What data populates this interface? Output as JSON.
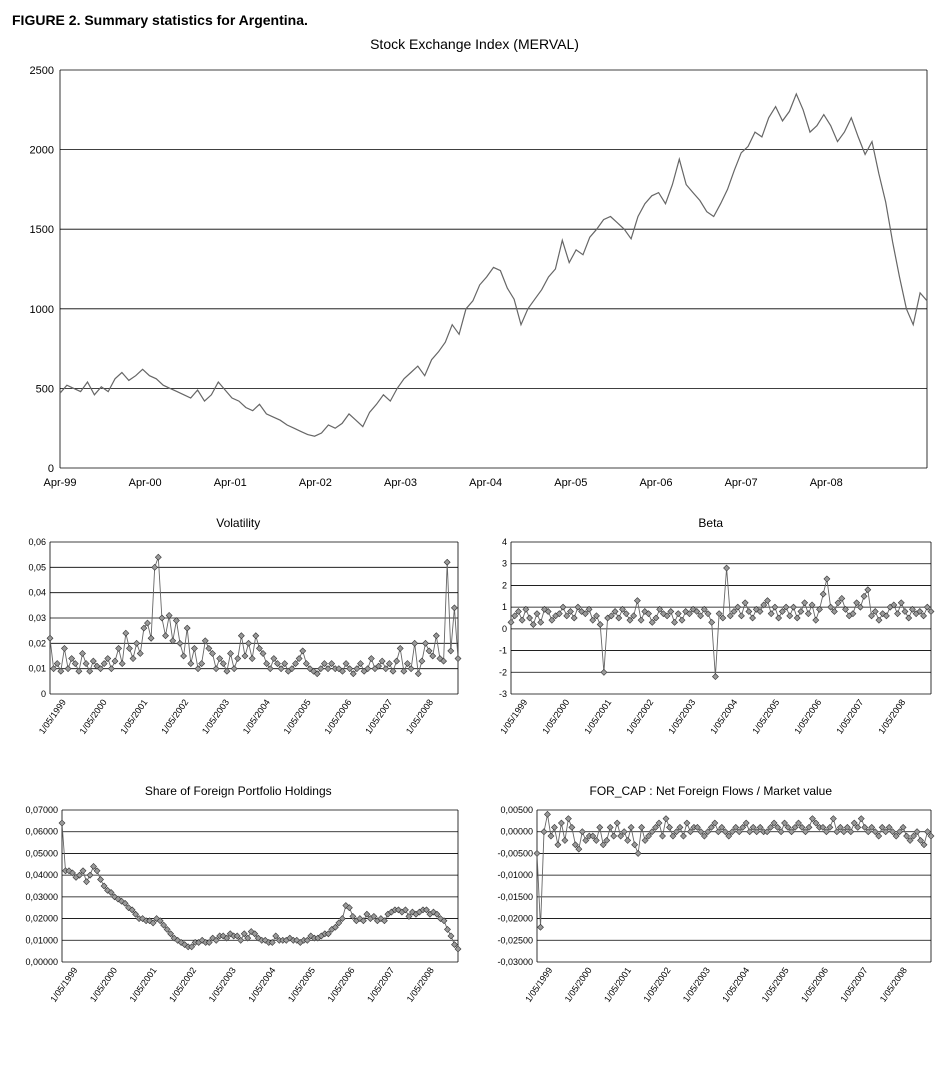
{
  "figure_caption": "FIGURE 2. Summary statistics for Argentina.",
  "main_chart": {
    "type": "line",
    "title": "Stock Exchange Index  (MERVAL)",
    "title_fontsize": 14,
    "line_color": "#666666",
    "line_width": 1.2,
    "background_color": "#ffffff",
    "grid_color": "#000000",
    "ylim": [
      0,
      2500
    ],
    "yticks": [
      0,
      500,
      1000,
      1500,
      2000,
      2500
    ],
    "xticks": [
      "Apr-99",
      "Apr-00",
      "Apr-01",
      "Apr-02",
      "Apr-03",
      "Apr-04",
      "Apr-05",
      "Apr-06",
      "Apr-07",
      "Apr-08"
    ],
    "series": [
      470,
      520,
      500,
      480,
      540,
      460,
      510,
      480,
      560,
      600,
      550,
      580,
      620,
      580,
      560,
      520,
      500,
      480,
      460,
      440,
      490,
      420,
      460,
      540,
      490,
      440,
      420,
      380,
      360,
      400,
      340,
      320,
      300,
      270,
      250,
      230,
      210,
      200,
      220,
      270,
      250,
      280,
      340,
      300,
      260,
      350,
      400,
      460,
      420,
      500,
      560,
      600,
      640,
      580,
      680,
      730,
      790,
      900,
      840,
      1000,
      1050,
      1150,
      1200,
      1260,
      1240,
      1130,
      1060,
      900,
      1000,
      1060,
      1120,
      1200,
      1250,
      1430,
      1290,
      1370,
      1340,
      1450,
      1500,
      1560,
      1580,
      1540,
      1500,
      1440,
      1580,
      1660,
      1710,
      1730,
      1660,
      1780,
      1940,
      1780,
      1730,
      1680,
      1610,
      1580,
      1660,
      1750,
      1870,
      1980,
      2020,
      2110,
      2080,
      2200,
      2270,
      2180,
      2240,
      2350,
      2250,
      2110,
      2150,
      2220,
      2150,
      2050,
      2110,
      2200,
      2080,
      1970,
      2050,
      1850,
      1670,
      1420,
      1200,
      1000,
      900,
      1100,
      1050
    ]
  },
  "volatility": {
    "type": "scatter-line",
    "title": "Volatility",
    "title_fontsize": 12,
    "marker_style": "diamond",
    "marker_fill": "#999999",
    "marker_stroke": "#333333",
    "line_color": "#666666",
    "line_width": 0.9,
    "ylim": [
      0,
      0.06
    ],
    "yticks": [
      0,
      0.01,
      0.02,
      0.03,
      0.04,
      0.05,
      0.06
    ],
    "ytick_labels": [
      "0",
      "0,01",
      "0,02",
      "0,03",
      "0,04",
      "0,05",
      "0,06"
    ],
    "xticks": [
      "1/05/1999",
      "1/05/2000",
      "1/05/2001",
      "1/05/2002",
      "1/05/2003",
      "1/05/2004",
      "1/05/2005",
      "1/05/2006",
      "1/05/2007",
      "1/05/2008"
    ],
    "values": [
      0.022,
      0.01,
      0.012,
      0.009,
      0.018,
      0.01,
      0.014,
      0.012,
      0.009,
      0.016,
      0.012,
      0.009,
      0.013,
      0.011,
      0.01,
      0.012,
      0.014,
      0.01,
      0.013,
      0.018,
      0.012,
      0.024,
      0.018,
      0.014,
      0.02,
      0.016,
      0.026,
      0.028,
      0.022,
      0.05,
      0.054,
      0.03,
      0.023,
      0.031,
      0.021,
      0.029,
      0.02,
      0.015,
      0.026,
      0.012,
      0.018,
      0.01,
      0.012,
      0.021,
      0.018,
      0.016,
      0.01,
      0.014,
      0.012,
      0.009,
      0.016,
      0.01,
      0.014,
      0.023,
      0.015,
      0.02,
      0.014,
      0.023,
      0.018,
      0.016,
      0.012,
      0.01,
      0.014,
      0.012,
      0.01,
      0.012,
      0.009,
      0.01,
      0.012,
      0.014,
      0.017,
      0.012,
      0.01,
      0.009,
      0.008,
      0.01,
      0.012,
      0.01,
      0.012,
      0.01,
      0.01,
      0.009,
      0.012,
      0.01,
      0.008,
      0.01,
      0.012,
      0.009,
      0.01,
      0.014,
      0.01,
      0.011,
      0.013,
      0.01,
      0.012,
      0.009,
      0.013,
      0.018,
      0.009,
      0.012,
      0.01,
      0.02,
      0.008,
      0.013,
      0.02,
      0.017,
      0.015,
      0.023,
      0.014,
      0.013,
      0.052,
      0.017,
      0.034,
      0.014
    ]
  },
  "beta": {
    "type": "scatter-line",
    "title": "Beta",
    "title_fontsize": 12,
    "marker_style": "diamond",
    "marker_fill": "#999999",
    "marker_stroke": "#333333",
    "line_color": "#666666",
    "line_width": 0.9,
    "ylim": [
      -3,
      4
    ],
    "yticks": [
      -3,
      -2,
      -1,
      0,
      1,
      2,
      3,
      4
    ],
    "xticks": [
      "1/05/1999",
      "1/05/2000",
      "1/05/2001",
      "1/05/2002",
      "1/05/2003",
      "1/05/2004",
      "1/05/2005",
      "1/05/2006",
      "1/05/2007",
      "1/05/2008"
    ],
    "values": [
      0.3,
      0.6,
      0.8,
      0.4,
      0.9,
      0.5,
      0.2,
      0.7,
      0.3,
      0.9,
      0.8,
      0.4,
      0.6,
      0.7,
      1.0,
      0.6,
      0.8,
      0.5,
      1.0,
      0.8,
      0.7,
      0.9,
      0.4,
      0.6,
      0.2,
      -2.0,
      0.5,
      0.6,
      0.8,
      0.5,
      0.9,
      0.7,
      0.4,
      0.6,
      1.3,
      0.4,
      0.8,
      0.7,
      0.3,
      0.5,
      0.9,
      0.7,
      0.6,
      0.8,
      0.3,
      0.7,
      0.4,
      0.8,
      0.7,
      0.9,
      0.8,
      0.6,
      0.9,
      0.7,
      0.3,
      -2.2,
      0.7,
      0.5,
      2.8,
      0.6,
      0.8,
      1.0,
      0.6,
      1.2,
      0.8,
      0.5,
      0.9,
      0.8,
      1.1,
      1.3,
      0.7,
      1.0,
      0.5,
      0.8,
      1.0,
      0.6,
      1.0,
      0.5,
      0.8,
      1.2,
      0.7,
      1.1,
      0.4,
      0.9,
      1.6,
      2.3,
      1.0,
      0.8,
      1.2,
      1.4,
      0.9,
      0.6,
      0.7,
      1.2,
      1.0,
      1.5,
      1.8,
      0.6,
      0.8,
      0.4,
      0.7,
      0.6,
      1.0,
      1.1,
      0.7,
      1.2,
      0.8,
      0.5,
      0.9,
      0.7,
      0.8,
      0.6,
      1.0,
      0.8
    ]
  },
  "foreign_holdings": {
    "type": "scatter-line",
    "title": "Share of Foreign Portfolio Holdings",
    "title_fontsize": 12,
    "marker_style": "diamond",
    "marker_fill": "#999999",
    "marker_stroke": "#333333",
    "line_color": "#666666",
    "line_width": 0.9,
    "ylim": [
      0,
      0.07
    ],
    "yticks": [
      0,
      0.01,
      0.02,
      0.03,
      0.04,
      0.05,
      0.06,
      0.07
    ],
    "ytick_labels": [
      "0,00000",
      "0,01000",
      "0,02000",
      "0,03000",
      "0,04000",
      "0,05000",
      "0,06000",
      "0,07000"
    ],
    "xticks": [
      "1/05/1999",
      "1/05/2000",
      "1/05/2001",
      "1/05/2002",
      "1/05/2003",
      "1/05/2004",
      "1/05/2005",
      "1/05/2006",
      "1/05/2007",
      "1/05/2008"
    ],
    "values": [
      0.064,
      0.042,
      0.042,
      0.041,
      0.039,
      0.04,
      0.042,
      0.037,
      0.04,
      0.044,
      0.042,
      0.038,
      0.035,
      0.033,
      0.032,
      0.03,
      0.029,
      0.028,
      0.027,
      0.025,
      0.024,
      0.022,
      0.02,
      0.02,
      0.019,
      0.019,
      0.018,
      0.02,
      0.019,
      0.017,
      0.015,
      0.013,
      0.011,
      0.01,
      0.009,
      0.008,
      0.007,
      0.007,
      0.009,
      0.009,
      0.01,
      0.009,
      0.009,
      0.011,
      0.01,
      0.012,
      0.012,
      0.011,
      0.013,
      0.012,
      0.012,
      0.01,
      0.013,
      0.011,
      0.014,
      0.013,
      0.011,
      0.01,
      0.01,
      0.009,
      0.009,
      0.012,
      0.01,
      0.01,
      0.01,
      0.011,
      0.01,
      0.01,
      0.009,
      0.01,
      0.01,
      0.012,
      0.011,
      0.011,
      0.012,
      0.013,
      0.013,
      0.015,
      0.016,
      0.018,
      0.02,
      0.026,
      0.025,
      0.021,
      0.019,
      0.02,
      0.019,
      0.022,
      0.02,
      0.021,
      0.019,
      0.02,
      0.019,
      0.022,
      0.023,
      0.024,
      0.024,
      0.023,
      0.024,
      0.021,
      0.023,
      0.022,
      0.023,
      0.024,
      0.024,
      0.022,
      0.023,
      0.022,
      0.02,
      0.019,
      0.015,
      0.012,
      0.008,
      0.006
    ]
  },
  "for_cap": {
    "type": "scatter-line",
    "title": "FOR_CAP : Net Foreign Flows / Market value",
    "title_fontsize": 12,
    "marker_style": "diamond",
    "marker_fill": "#999999",
    "marker_stroke": "#333333",
    "line_color": "#666666",
    "line_width": 0.9,
    "ylim": [
      -0.03,
      0.005
    ],
    "yticks": [
      -0.03,
      -0.025,
      -0.02,
      -0.015,
      -0.01,
      -0.005,
      0,
      0.005
    ],
    "ytick_labels": [
      "-0,03000",
      "-0,02500",
      "-0,02000",
      "-0,01500",
      "-0,01000",
      "-0,00500",
      "0,00000",
      "0,00500"
    ],
    "xticks": [
      "1/05/1999",
      "1/05/2000",
      "1/05/2001",
      "1/05/2002",
      "1/05/2003",
      "1/05/2004",
      "1/05/2005",
      "1/05/2006",
      "1/05/2007",
      "1/05/2008"
    ],
    "values": [
      -0.005,
      -0.022,
      0.0,
      0.004,
      -0.001,
      0.001,
      -0.003,
      0.002,
      -0.002,
      0.003,
      0.001,
      -0.003,
      -0.004,
      0.0,
      -0.002,
      -0.001,
      -0.001,
      -0.002,
      0.001,
      -0.003,
      -0.002,
      0.001,
      -0.001,
      0.002,
      -0.001,
      0.0,
      -0.002,
      0.001,
      -0.003,
      -0.005,
      0.001,
      -0.002,
      -0.001,
      0.0,
      0.001,
      0.002,
      -0.001,
      0.003,
      0.001,
      -0.001,
      0.0,
      0.001,
      -0.001,
      0.002,
      0.0,
      0.001,
      0.001,
      0.0,
      -0.001,
      0.0,
      0.001,
      0.002,
      0.0,
      0.001,
      0.0,
      -0.001,
      0.0,
      0.001,
      0.0,
      0.001,
      0.002,
      0.0,
      0.001,
      0.0,
      0.001,
      0.0,
      0.0,
      0.001,
      0.002,
      0.001,
      0.0,
      0.002,
      0.001,
      0.0,
      0.001,
      0.002,
      0.001,
      0.0,
      0.001,
      0.003,
      0.002,
      0.001,
      0.001,
      0.0,
      0.001,
      0.003,
      0.0,
      0.001,
      0.0,
      0.001,
      0.0,
      0.002,
      0.001,
      0.003,
      0.001,
      0.0,
      0.001,
      0.0,
      -0.001,
      0.001,
      0.0,
      0.001,
      0.0,
      -0.001,
      0.0,
      0.001,
      -0.001,
      -0.002,
      -0.001,
      0.0,
      -0.002,
      -0.003,
      0.0,
      -0.001
    ]
  }
}
